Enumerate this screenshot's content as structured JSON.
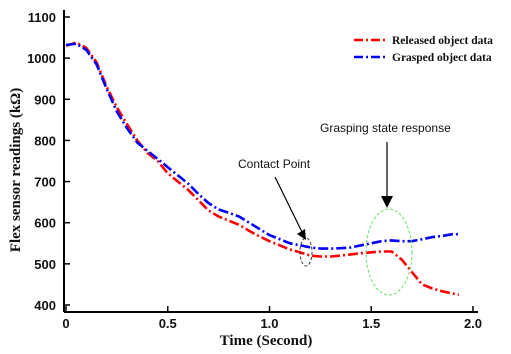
{
  "chart_data": {
    "type": "line",
    "title": "",
    "xlabel": "Time (Second)",
    "ylabel": "Flex sensor readings (kΩ)",
    "xlim": [
      0,
      2.0
    ],
    "ylim": [
      400,
      1100
    ],
    "xticks": [
      "0",
      "0.5",
      "1.0",
      "1.5",
      "2.0"
    ],
    "yticks": [
      "400",
      "500",
      "600",
      "700",
      "800",
      "900",
      "1000",
      "1100"
    ],
    "grid": false,
    "legend_position": "top-right",
    "series": [
      {
        "name": "Released object data",
        "color": "#ff0000",
        "style": "dash-dot",
        "x": [
          0,
          0.05,
          0.1,
          0.15,
          0.2,
          0.25,
          0.3,
          0.35,
          0.4,
          0.45,
          0.5,
          0.55,
          0.6,
          0.65,
          0.7,
          0.75,
          0.8,
          0.85,
          0.9,
          0.95,
          1.0,
          1.05,
          1.1,
          1.15,
          1.2,
          1.25,
          1.3,
          1.35,
          1.4,
          1.45,
          1.5,
          1.55,
          1.6,
          1.65,
          1.7,
          1.75,
          1.8,
          1.85,
          1.9,
          1.93
        ],
        "y": [
          1030,
          1038,
          1025,
          990,
          930,
          880,
          840,
          800,
          770,
          750,
          720,
          700,
          680,
          655,
          630,
          615,
          605,
          595,
          580,
          567,
          555,
          545,
          535,
          528,
          520,
          518,
          518,
          520,
          523,
          526,
          528,
          530,
          530,
          510,
          480,
          450,
          440,
          433,
          428,
          425
        ]
      },
      {
        "name": "Grasped object data",
        "color": "#0000ff",
        "style": "dash-dot",
        "x": [
          0,
          0.05,
          0.1,
          0.15,
          0.2,
          0.25,
          0.3,
          0.35,
          0.4,
          0.45,
          0.5,
          0.55,
          0.6,
          0.65,
          0.7,
          0.75,
          0.8,
          0.85,
          0.9,
          0.95,
          1.0,
          1.05,
          1.1,
          1.15,
          1.2,
          1.25,
          1.3,
          1.35,
          1.4,
          1.45,
          1.5,
          1.55,
          1.6,
          1.65,
          1.7,
          1.75,
          1.8,
          1.85,
          1.9,
          1.93
        ],
        "y": [
          1032,
          1035,
          1020,
          985,
          925,
          870,
          830,
          795,
          775,
          755,
          735,
          715,
          695,
          670,
          648,
          632,
          624,
          615,
          600,
          585,
          570,
          560,
          550,
          545,
          540,
          537,
          537,
          538,
          540,
          545,
          550,
          555,
          557,
          555,
          555,
          560,
          565,
          568,
          572,
          572
        ]
      }
    ],
    "annotations": [
      {
        "text": "Contact Point",
        "x": 1.17,
        "y": 532
      },
      {
        "text": "Grasping state response",
        "x": 1.6,
        "y": 550
      }
    ]
  }
}
